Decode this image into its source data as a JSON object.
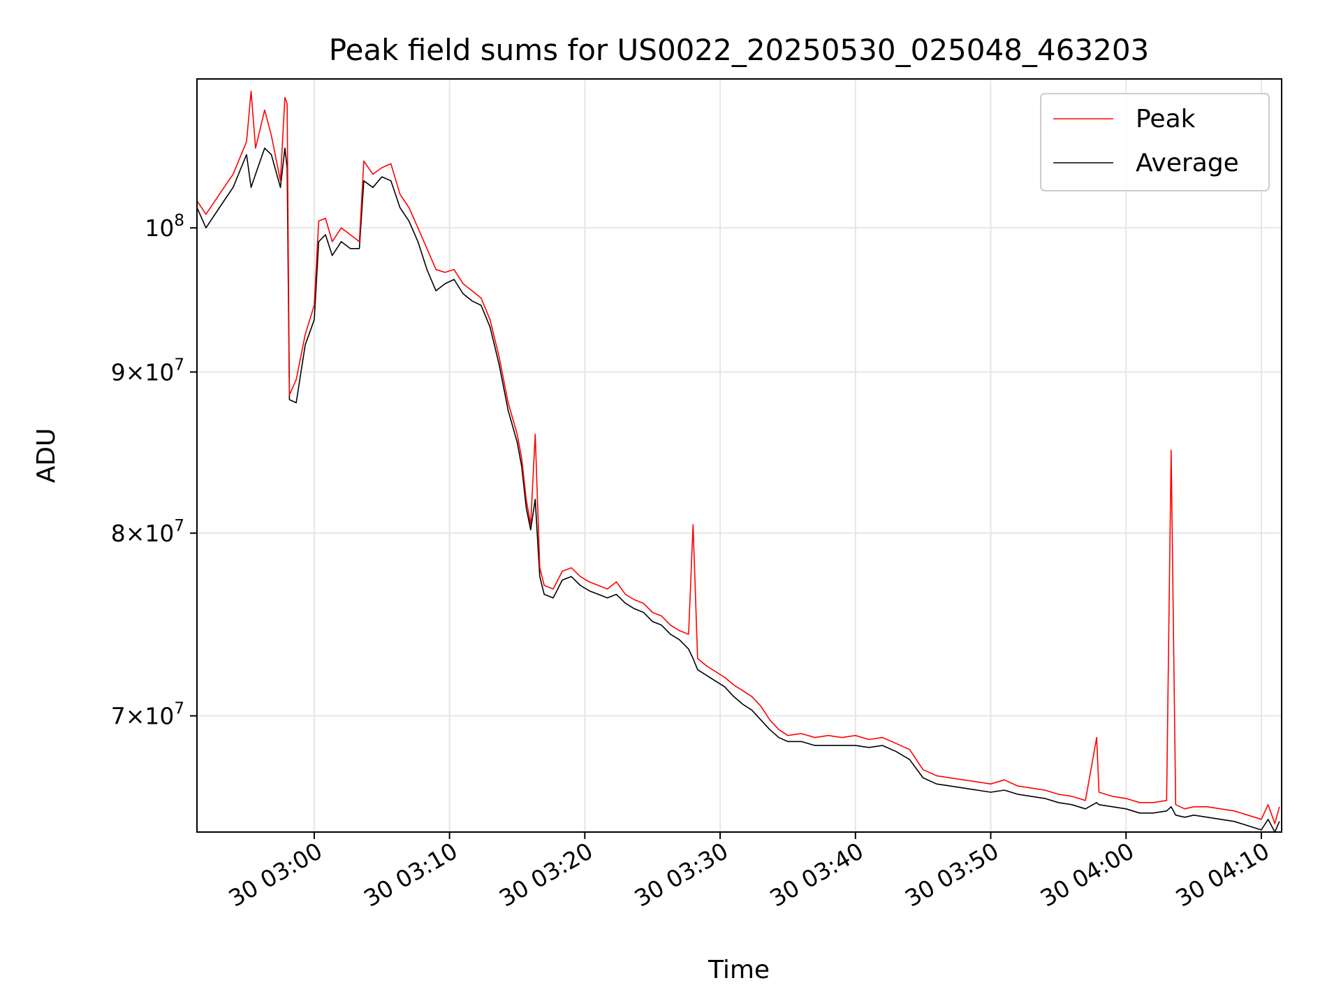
{
  "chart_data": {
    "type": "line",
    "title": "Peak field sums for US0022_20250530_025048_463203",
    "xlabel": "Time",
    "ylabel": "ADU",
    "yscale": "log",
    "grid": true,
    "legend_position": "top-right",
    "xlim": [
      "02:51:20",
      "04:11:30"
    ],
    "ylim": [
      64300000,
      111500000
    ],
    "x_ticks": [
      {
        "value": "03:00",
        "label": "30 03:00"
      },
      {
        "value": "03:10",
        "label": "30 03:10"
      },
      {
        "value": "03:20",
        "label": "30 03:20"
      },
      {
        "value": "03:30",
        "label": "30 03:30"
      },
      {
        "value": "03:40",
        "label": "30 03:40"
      },
      {
        "value": "03:50",
        "label": "30 03:50"
      },
      {
        "value": "04:00",
        "label": "30 04:00"
      },
      {
        "value": "04:10",
        "label": "30 04:10"
      }
    ],
    "y_ticks": [
      {
        "value": 100000000,
        "base": "10",
        "exp": "8"
      },
      {
        "value": 90000000,
        "base": "9×10",
        "exp": "7"
      },
      {
        "value": 80000000,
        "base": "8×10",
        "exp": "7"
      },
      {
        "value": 70000000,
        "base": "7×10",
        "exp": "7"
      }
    ],
    "series": [
      {
        "name": "Peak",
        "color": "#ff0000",
        "points": [
          [
            "02:51:20",
            102000000
          ],
          [
            "02:52:00",
            101000000
          ],
          [
            "02:53:00",
            102500000
          ],
          [
            "02:54:00",
            104000000
          ],
          [
            "02:55:00",
            106500000
          ],
          [
            "02:55:20",
            110500000
          ],
          [
            "02:55:40",
            106000000
          ],
          [
            "02:56:20",
            109000000
          ],
          [
            "02:56:50",
            107000000
          ],
          [
            "02:57:30",
            103500000
          ],
          [
            "02:57:50",
            110000000
          ],
          [
            "02:58:00",
            109500000
          ],
          [
            "02:58:10",
            88500000
          ],
          [
            "02:58:40",
            89500000
          ],
          [
            "02:59:20",
            92500000
          ],
          [
            "03:00:00",
            94500000
          ],
          [
            "03:00:20",
            100500000
          ],
          [
            "03:00:50",
            100700000
          ],
          [
            "03:01:20",
            99000000
          ],
          [
            "03:02:00",
            100000000
          ],
          [
            "03:02:40",
            99500000
          ],
          [
            "03:03:20",
            99000000
          ],
          [
            "03:03:40",
            105000000
          ],
          [
            "03:04:20",
            104000000
          ],
          [
            "03:05:00",
            104500000
          ],
          [
            "03:05:40",
            104800000
          ],
          [
            "03:06:20",
            102500000
          ],
          [
            "03:07:00",
            101500000
          ],
          [
            "03:07:40",
            100000000
          ],
          [
            "03:08:20",
            98500000
          ],
          [
            "03:09:00",
            97000000
          ],
          [
            "03:09:40",
            96800000
          ],
          [
            "03:10:20",
            97000000
          ],
          [
            "03:11:00",
            96000000
          ],
          [
            "03:11:40",
            95500000
          ],
          [
            "03:12:20",
            95000000
          ],
          [
            "03:13:00",
            93500000
          ],
          [
            "03:13:40",
            91000000
          ],
          [
            "03:14:20",
            88000000
          ],
          [
            "03:15:00",
            86000000
          ],
          [
            "03:15:20",
            84500000
          ],
          [
            "03:15:40",
            82000000
          ],
          [
            "03:16:00",
            80500000
          ],
          [
            "03:16:20",
            86000000
          ],
          [
            "03:16:40",
            78000000
          ],
          [
            "03:17:00",
            77000000
          ],
          [
            "03:17:40",
            76800000
          ],
          [
            "03:18:20",
            77800000
          ],
          [
            "03:19:00",
            78000000
          ],
          [
            "03:19:40",
            77500000
          ],
          [
            "03:20:20",
            77200000
          ],
          [
            "03:21:00",
            77000000
          ],
          [
            "03:21:40",
            76800000
          ],
          [
            "03:22:20",
            77200000
          ],
          [
            "03:23:00",
            76500000
          ],
          [
            "03:23:40",
            76200000
          ],
          [
            "03:24:20",
            76000000
          ],
          [
            "03:25:00",
            75500000
          ],
          [
            "03:25:40",
            75300000
          ],
          [
            "03:26:20",
            74800000
          ],
          [
            "03:27:00",
            74500000
          ],
          [
            "03:27:40",
            74300000
          ],
          [
            "03:28:00",
            80500000
          ],
          [
            "03:28:20",
            73000000
          ],
          [
            "03:29:00",
            72600000
          ],
          [
            "03:29:40",
            72300000
          ],
          [
            "03:30:20",
            72000000
          ],
          [
            "03:31:00",
            71600000
          ],
          [
            "03:31:40",
            71300000
          ],
          [
            "03:32:20",
            71000000
          ],
          [
            "03:33:00",
            70500000
          ],
          [
            "03:33:40",
            69800000
          ],
          [
            "03:34:20",
            69300000
          ],
          [
            "03:35:00",
            69000000
          ],
          [
            "03:36:00",
            69100000
          ],
          [
            "03:37:00",
            68900000
          ],
          [
            "03:38:00",
            69000000
          ],
          [
            "03:39:00",
            68900000
          ],
          [
            "03:40:00",
            69000000
          ],
          [
            "03:41:00",
            68800000
          ],
          [
            "03:42:00",
            68900000
          ],
          [
            "03:43:00",
            68600000
          ],
          [
            "03:44:00",
            68300000
          ],
          [
            "03:45:00",
            67300000
          ],
          [
            "03:46:00",
            67000000
          ],
          [
            "03:47:00",
            66900000
          ],
          [
            "03:48:00",
            66800000
          ],
          [
            "03:49:00",
            66700000
          ],
          [
            "03:50:00",
            66600000
          ],
          [
            "03:51:00",
            66800000
          ],
          [
            "03:52:00",
            66500000
          ],
          [
            "03:53:00",
            66400000
          ],
          [
            "03:54:00",
            66300000
          ],
          [
            "03:55:00",
            66100000
          ],
          [
            "03:56:00",
            66000000
          ],
          [
            "03:57:00",
            65800000
          ],
          [
            "03:57:50",
            68900000
          ],
          [
            "03:58:00",
            66200000
          ],
          [
            "03:59:00",
            66000000
          ],
          [
            "04:00:00",
            65900000
          ],
          [
            "04:01:00",
            65700000
          ],
          [
            "04:02:00",
            65700000
          ],
          [
            "04:03:00",
            65800000
          ],
          [
            "04:03:20",
            85000000
          ],
          [
            "04:03:40",
            65600000
          ],
          [
            "04:04:20",
            65400000
          ],
          [
            "04:05:00",
            65500000
          ],
          [
            "04:06:00",
            65500000
          ],
          [
            "04:07:00",
            65400000
          ],
          [
            "04:08:00",
            65300000
          ],
          [
            "04:09:00",
            65100000
          ],
          [
            "04:10:00",
            64900000
          ],
          [
            "04:10:30",
            65600000
          ],
          [
            "04:11:00",
            64700000
          ],
          [
            "04:11:20",
            65500000
          ]
        ]
      },
      {
        "name": "Average",
        "color": "#000000",
        "points": [
          [
            "02:51:20",
            101500000
          ],
          [
            "02:52:00",
            100000000
          ],
          [
            "02:53:00",
            101500000
          ],
          [
            "02:54:00",
            103000000
          ],
          [
            "02:55:00",
            105500000
          ],
          [
            "02:55:20",
            103000000
          ],
          [
            "02:55:40",
            104000000
          ],
          [
            "02:56:20",
            106000000
          ],
          [
            "02:56:50",
            105500000
          ],
          [
            "02:57:30",
            103000000
          ],
          [
            "02:57:50",
            106000000
          ],
          [
            "02:58:00",
            104500000
          ],
          [
            "02:58:10",
            88200000
          ],
          [
            "02:58:40",
            88000000
          ],
          [
            "02:59:20",
            91800000
          ],
          [
            "03:00:00",
            93500000
          ],
          [
            "03:00:20",
            99000000
          ],
          [
            "03:00:50",
            99500000
          ],
          [
            "03:01:20",
            98000000
          ],
          [
            "03:02:00",
            99000000
          ],
          [
            "03:02:40",
            98500000
          ],
          [
            "03:03:20",
            98500000
          ],
          [
            "03:03:40",
            103500000
          ],
          [
            "03:04:20",
            103000000
          ],
          [
            "03:05:00",
            103800000
          ],
          [
            "03:05:40",
            103500000
          ],
          [
            "03:06:20",
            101500000
          ],
          [
            "03:07:00",
            100500000
          ],
          [
            "03:07:40",
            99000000
          ],
          [
            "03:08:20",
            97000000
          ],
          [
            "03:09:00",
            95500000
          ],
          [
            "03:09:40",
            96000000
          ],
          [
            "03:10:20",
            96300000
          ],
          [
            "03:11:00",
            95300000
          ],
          [
            "03:11:40",
            94800000
          ],
          [
            "03:12:20",
            94500000
          ],
          [
            "03:13:00",
            93000000
          ],
          [
            "03:13:40",
            90500000
          ],
          [
            "03:14:20",
            87500000
          ],
          [
            "03:15:00",
            85500000
          ],
          [
            "03:15:20",
            84000000
          ],
          [
            "03:15:40",
            81500000
          ],
          [
            "03:16:00",
            80200000
          ],
          [
            "03:16:20",
            82000000
          ],
          [
            "03:16:40",
            77500000
          ],
          [
            "03:17:00",
            76500000
          ],
          [
            "03:17:40",
            76300000
          ],
          [
            "03:18:20",
            77300000
          ],
          [
            "03:19:00",
            77500000
          ],
          [
            "03:19:40",
            77000000
          ],
          [
            "03:20:20",
            76700000
          ],
          [
            "03:21:00",
            76500000
          ],
          [
            "03:21:40",
            76300000
          ],
          [
            "03:22:20",
            76500000
          ],
          [
            "03:23:00",
            76000000
          ],
          [
            "03:23:40",
            75700000
          ],
          [
            "03:24:20",
            75500000
          ],
          [
            "03:25:00",
            75000000
          ],
          [
            "03:25:40",
            74800000
          ],
          [
            "03:26:20",
            74300000
          ],
          [
            "03:27:00",
            74000000
          ],
          [
            "03:27:40",
            73500000
          ],
          [
            "03:28:00",
            73000000
          ],
          [
            "03:28:20",
            72400000
          ],
          [
            "03:29:00",
            72100000
          ],
          [
            "03:29:40",
            71800000
          ],
          [
            "03:30:20",
            71500000
          ],
          [
            "03:31:00",
            71000000
          ],
          [
            "03:31:40",
            70600000
          ],
          [
            "03:32:20",
            70300000
          ],
          [
            "03:33:00",
            69800000
          ],
          [
            "03:33:40",
            69300000
          ],
          [
            "03:34:20",
            68900000
          ],
          [
            "03:35:00",
            68700000
          ],
          [
            "03:36:00",
            68700000
          ],
          [
            "03:37:00",
            68500000
          ],
          [
            "03:38:00",
            68500000
          ],
          [
            "03:39:00",
            68500000
          ],
          [
            "03:40:00",
            68500000
          ],
          [
            "03:41:00",
            68400000
          ],
          [
            "03:42:00",
            68500000
          ],
          [
            "03:43:00",
            68200000
          ],
          [
            "03:44:00",
            67800000
          ],
          [
            "03:45:00",
            66900000
          ],
          [
            "03:46:00",
            66600000
          ],
          [
            "03:47:00",
            66500000
          ],
          [
            "03:48:00",
            66400000
          ],
          [
            "03:49:00",
            66300000
          ],
          [
            "03:50:00",
            66200000
          ],
          [
            "03:51:00",
            66300000
          ],
          [
            "03:52:00",
            66100000
          ],
          [
            "03:53:00",
            66000000
          ],
          [
            "03:54:00",
            65900000
          ],
          [
            "03:55:00",
            65700000
          ],
          [
            "03:56:00",
            65600000
          ],
          [
            "03:57:00",
            65400000
          ],
          [
            "03:57:50",
            65700000
          ],
          [
            "03:58:00",
            65600000
          ],
          [
            "03:59:00",
            65500000
          ],
          [
            "04:00:00",
            65400000
          ],
          [
            "04:01:00",
            65200000
          ],
          [
            "04:02:00",
            65200000
          ],
          [
            "04:03:00",
            65300000
          ],
          [
            "04:03:20",
            65500000
          ],
          [
            "04:03:40",
            65100000
          ],
          [
            "04:04:20",
            65000000
          ],
          [
            "04:05:00",
            65100000
          ],
          [
            "04:06:00",
            65000000
          ],
          [
            "04:07:00",
            64900000
          ],
          [
            "04:08:00",
            64800000
          ],
          [
            "04:09:00",
            64600000
          ],
          [
            "04:10:00",
            64400000
          ],
          [
            "04:10:30",
            64900000
          ],
          [
            "04:11:00",
            64300000
          ],
          [
            "04:11:20",
            64800000
          ]
        ]
      }
    ]
  }
}
